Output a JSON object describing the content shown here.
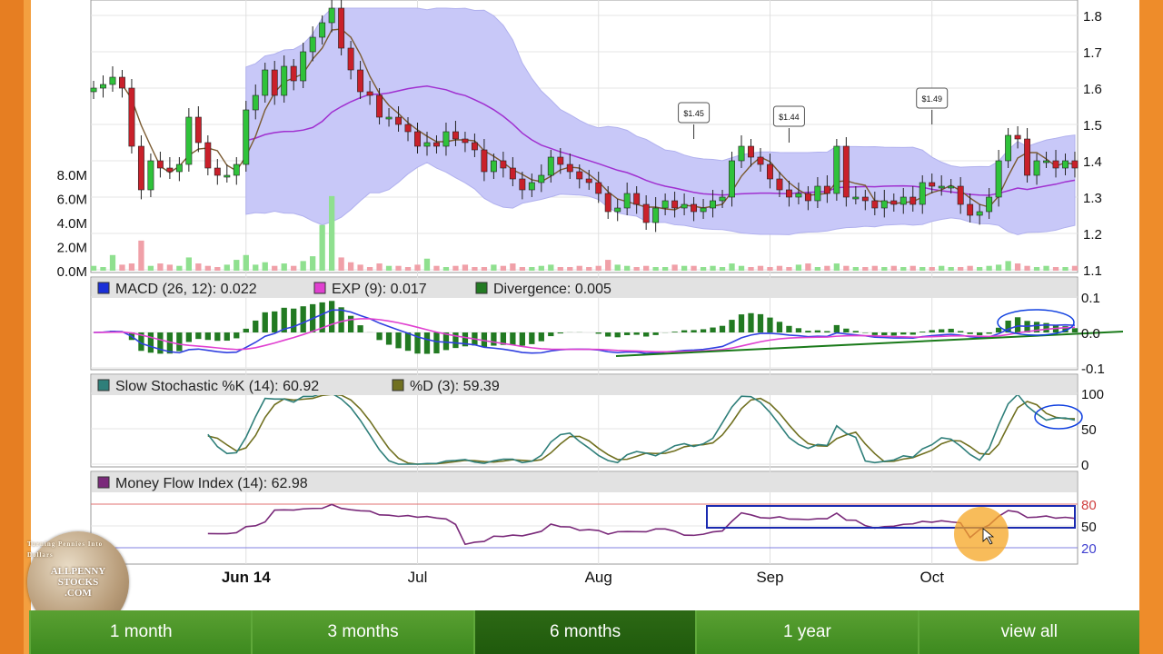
{
  "colors": {
    "up": "#2fc23a",
    "down": "#c9202a",
    "band": "#c8c8f8",
    "band_edge": "#b0b0ee",
    "mid": "#a030d0",
    "ma": "#7a5a30",
    "macd": "#3040e0",
    "exp": "#e040d0",
    "div": "#227a22",
    "slowk": "#2f7f7a",
    "slowd": "#707020",
    "mfi": "#7a2a7a",
    "annot": "#1040e0",
    "nav": "#3f7f22",
    "accent": "#e67e22"
  },
  "nav": {
    "items": [
      "1 month",
      "3 months",
      "6 months",
      "1 year",
      "view all"
    ],
    "active_index": 2
  },
  "logo": {
    "line1": "ALLPENNY",
    "line2": "STOCKS",
    "line3": ".COM",
    "arc_text": "Turning Pennies Into Dollars"
  },
  "chart_data": [
    {
      "type": "candlestick",
      "title": "",
      "x_labels": [
        "Jun 14",
        "Jul",
        "Aug",
        "Sep",
        "Oct"
      ],
      "y_ticks": [
        "1.8",
        "1.7",
        "1.6",
        "1.5",
        "1.4",
        "1.3",
        "1.2",
        "1.1"
      ],
      "ylim": [
        1.1,
        1.8
      ],
      "volume_ticks": [
        "8.0M",
        "6.0M",
        "4.0M",
        "2.0M",
        "0.0M"
      ],
      "volume_ylim": [
        0,
        8
      ],
      "annotations": [
        {
          "label": "$1.45",
          "value": 1.45,
          "index": 63
        },
        {
          "label": "$1.44",
          "value": 1.44,
          "index": 73
        },
        {
          "label": "$1.49",
          "value": 1.49,
          "index": 88
        }
      ],
      "closes": [
        1.6,
        1.61,
        1.63,
        1.6,
        1.44,
        1.32,
        1.4,
        1.38,
        1.37,
        1.39,
        1.52,
        1.45,
        1.38,
        1.36,
        1.36,
        1.39,
        1.54,
        1.58,
        1.65,
        1.58,
        1.66,
        1.62,
        1.7,
        1.74,
        1.78,
        1.82,
        1.71,
        1.65,
        1.59,
        1.58,
        1.52,
        1.52,
        1.5,
        1.48,
        1.44,
        1.45,
        1.44,
        1.48,
        1.46,
        1.45,
        1.43,
        1.37,
        1.4,
        1.38,
        1.35,
        1.32,
        1.34,
        1.36,
        1.41,
        1.39,
        1.37,
        1.35,
        1.34,
        1.31,
        1.26,
        1.27,
        1.31,
        1.28,
        1.23,
        1.27,
        1.29,
        1.27,
        1.28,
        1.26,
        1.27,
        1.29,
        1.3,
        1.4,
        1.44,
        1.41,
        1.39,
        1.35,
        1.32,
        1.3,
        1.31,
        1.29,
        1.33,
        1.31,
        1.44,
        1.3,
        1.3,
        1.29,
        1.27,
        1.29,
        1.28,
        1.3,
        1.28,
        1.34,
        1.33,
        1.33,
        1.33,
        1.28,
        1.25,
        1.26,
        1.3,
        1.4,
        1.47,
        1.46,
        1.36,
        1.4,
        1.4,
        1.38,
        1.4,
        1.38
      ],
      "volume": [
        0.4,
        0.3,
        1.3,
        0.5,
        0.6,
        2.5,
        0.4,
        0.6,
        0.5,
        0.4,
        1.1,
        0.6,
        0.4,
        0.3,
        0.5,
        0.9,
        1.3,
        0.5,
        0.7,
        0.4,
        0.6,
        0.4,
        0.8,
        1.2,
        3.8,
        6.2,
        1.1,
        0.7,
        0.5,
        0.3,
        0.6,
        0.4,
        0.4,
        0.3,
        0.5,
        1.0,
        0.4,
        0.3,
        0.4,
        0.5,
        0.3,
        0.3,
        0.5,
        0.4,
        0.6,
        0.3,
        0.3,
        0.4,
        0.5,
        0.3,
        0.3,
        0.4,
        0.3,
        0.4,
        0.9,
        0.5,
        0.4,
        0.3,
        0.4,
        0.3,
        0.3,
        0.5,
        0.4,
        0.4,
        0.3,
        0.4,
        0.3,
        0.6,
        0.4,
        0.3,
        0.4,
        0.3,
        0.4,
        0.3,
        0.5,
        0.6,
        0.3,
        0.4,
        0.6,
        0.4,
        0.3,
        0.3,
        0.4,
        0.3,
        0.4,
        0.3,
        0.4,
        0.3,
        0.3,
        0.4,
        0.3,
        0.3,
        0.4,
        0.3,
        0.4,
        0.5,
        0.8,
        0.6,
        0.4,
        0.3,
        0.4,
        0.3,
        0.3,
        0.4
      ]
    },
    {
      "type": "line",
      "legend": [
        {
          "label": "MACD (26, 12): 0.022"
        },
        {
          "label": "EXP (9): 0.017"
        },
        {
          "label": "Divergence: 0.005"
        }
      ],
      "y_ticks": [
        "0.1",
        "0.0",
        "-0.1"
      ],
      "ylim": [
        -0.1,
        0.1
      ]
    },
    {
      "type": "line",
      "legend": [
        {
          "label": "Slow Stochastic %K (14): 60.92"
        },
        {
          "label": "%D (3): 59.39"
        }
      ],
      "y_ticks": [
        "100",
        "50",
        "0"
      ],
      "ylim": [
        0,
        100
      ]
    },
    {
      "type": "line",
      "legend": [
        {
          "label": "Money Flow Index (14): 62.98"
        }
      ],
      "y_ticks": [
        "80",
        "50",
        "20"
      ],
      "ylim": [
        0,
        100
      ]
    }
  ]
}
